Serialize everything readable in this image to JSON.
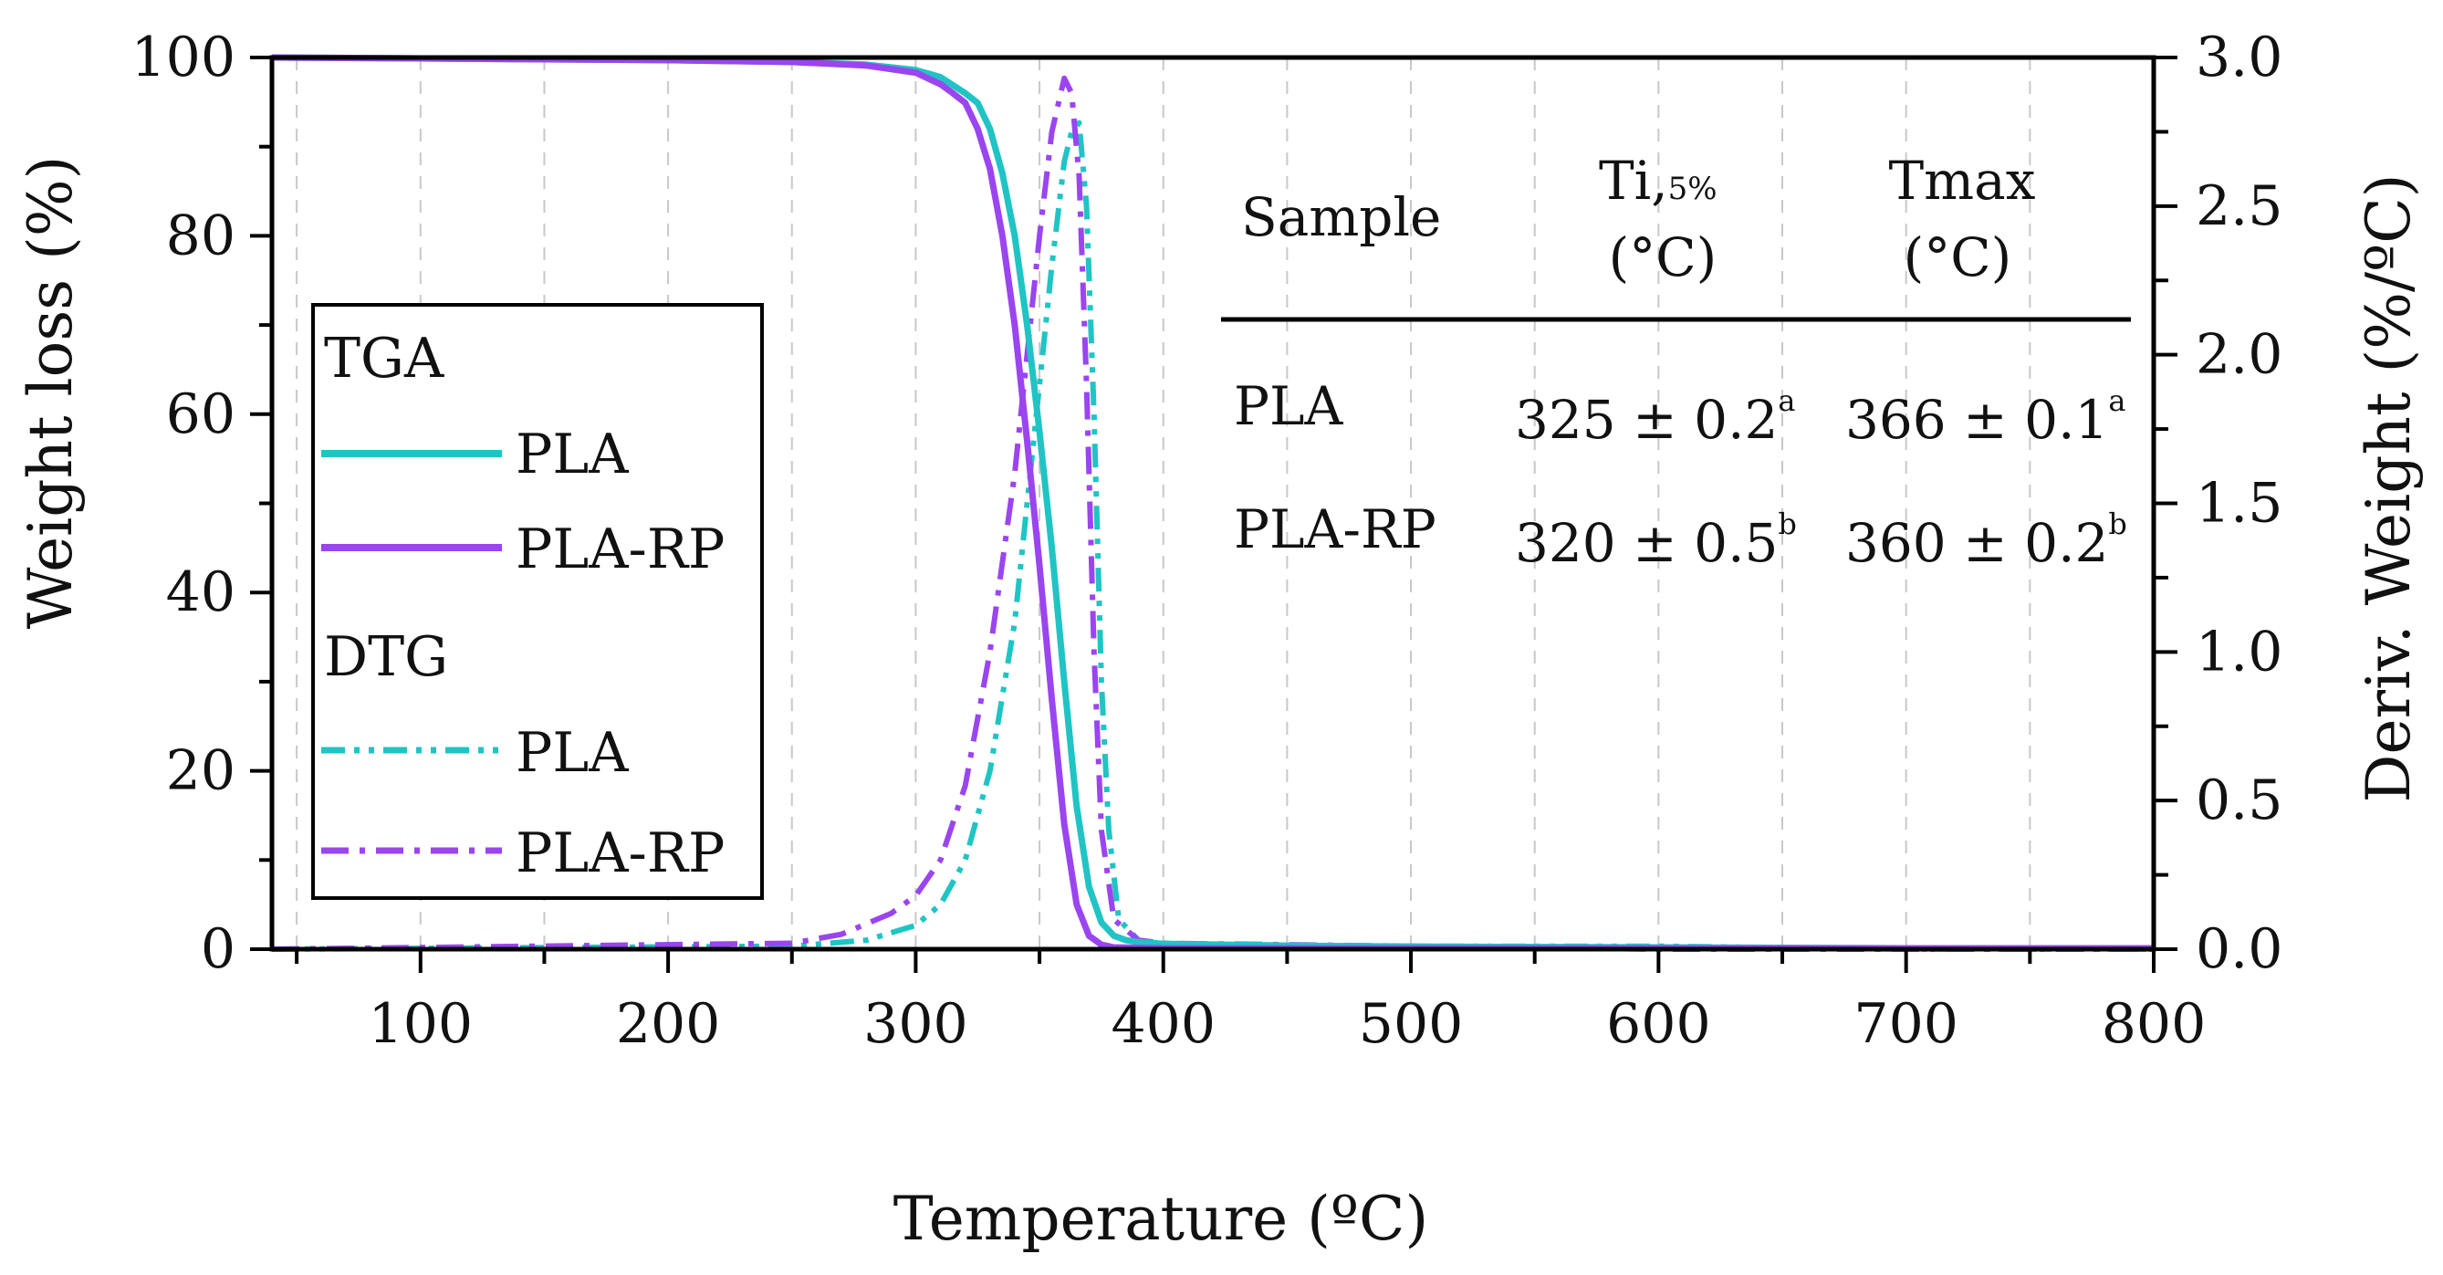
{
  "chart_data": {
    "type": "line",
    "xlabel": "Temperature (ºC)",
    "ylabel": "Weight loss (%)",
    "y2label": "Deriv. Weight (%/ºC)",
    "xlim": [
      40,
      800
    ],
    "ylim": [
      0,
      100
    ],
    "y2lim": [
      0,
      3.0
    ],
    "x_ticks": [
      "100",
      "200",
      "300",
      "400",
      "500",
      "600",
      "700",
      "800"
    ],
    "y_ticks": [
      "0",
      "20",
      "40",
      "60",
      "80",
      "100"
    ],
    "y2_ticks": [
      "0.0",
      "0.5",
      "1.0",
      "1.5",
      "2.0",
      "2.5",
      "3.0"
    ],
    "grid": "vertical-dashed",
    "colors": {
      "PLA": "#20c4c4",
      "PLA-RP": "#9a45f0",
      "axis": "#000000",
      "grid": "#c8c8c8"
    },
    "legend": {
      "position": "left",
      "groups": [
        {
          "title": "TGA",
          "entries": [
            {
              "label": "PLA",
              "series": "tga_pla"
            },
            {
              "label": "PLA-RP",
              "series": "tga_plarp"
            }
          ]
        },
        {
          "title": "DTG",
          "entries": [
            {
              "label": "PLA",
              "series": "dtg_pla"
            },
            {
              "label": "PLA-RP",
              "series": "dtg_plarp"
            }
          ]
        }
      ]
    },
    "series": [
      {
        "id": "tga_pla",
        "name": "TGA PLA",
        "axis": "left",
        "color": "#20c4c4",
        "style": "solid",
        "x": [
          40,
          100,
          200,
          250,
          280,
          300,
          310,
          320,
          325,
          330,
          335,
          340,
          345,
          350,
          355,
          360,
          365,
          370,
          375,
          380,
          385,
          390,
          400,
          450,
          500,
          600,
          700,
          800
        ],
        "y": [
          100,
          99.9,
          99.7,
          99.5,
          99.2,
          98.6,
          97.8,
          96.0,
          94.9,
          92.0,
          87.0,
          80.0,
          70.0,
          58.0,
          45.0,
          30.0,
          16.0,
          7.0,
          3.0,
          1.5,
          1.0,
          0.8,
          0.6,
          0.4,
          0.3,
          0.2,
          0.1,
          0.1
        ]
      },
      {
        "id": "tga_plarp",
        "name": "TGA PLA-RP",
        "axis": "left",
        "color": "#9a45f0",
        "style": "solid",
        "x": [
          40,
          100,
          200,
          250,
          280,
          300,
          310,
          315,
          320,
          325,
          330,
          335,
          340,
          345,
          350,
          355,
          360,
          365,
          370,
          375,
          380,
          400,
          500,
          600,
          700,
          800
        ],
        "y": [
          100,
          99.9,
          99.7,
          99.5,
          99.1,
          98.3,
          97.0,
          96.0,
          94.9,
          92.0,
          87.5,
          80.0,
          70.0,
          57.0,
          43.0,
          28.0,
          14.0,
          5.0,
          1.5,
          0.5,
          0.2,
          0.1,
          0.1,
          0.1,
          0.1,
          0.1
        ]
      },
      {
        "id": "dtg_pla",
        "name": "DTG PLA",
        "axis": "right",
        "color": "#20c4c4",
        "style": "dash-dot-dot",
        "x": [
          40,
          250,
          280,
          300,
          310,
          320,
          330,
          340,
          345,
          350,
          355,
          360,
          363,
          366,
          369,
          372,
          375,
          378,
          382,
          390,
          400,
          450,
          500,
          600,
          700,
          800
        ],
        "y": [
          0,
          0.01,
          0.03,
          0.08,
          0.15,
          0.3,
          0.6,
          1.1,
          1.5,
          1.9,
          2.3,
          2.65,
          2.75,
          2.78,
          2.5,
          1.8,
          0.9,
          0.4,
          0.1,
          0.03,
          0.02,
          0.01,
          0.01,
          0.01,
          0.0,
          0.0
        ]
      },
      {
        "id": "dtg_plarp",
        "name": "DTG PLA-RP",
        "axis": "right",
        "color": "#9a45f0",
        "style": "dash-dot",
        "x": [
          40,
          250,
          270,
          290,
          300,
          310,
          320,
          330,
          340,
          345,
          350,
          355,
          360,
          363,
          366,
          369,
          372,
          375,
          380,
          390,
          400,
          500,
          600,
          700,
          800
        ],
        "y": [
          0,
          0.02,
          0.05,
          0.12,
          0.18,
          0.3,
          0.55,
          1.0,
          1.6,
          2.0,
          2.4,
          2.75,
          2.93,
          2.88,
          2.6,
          1.9,
          1.0,
          0.4,
          0.1,
          0.03,
          0.02,
          0.01,
          0.0,
          0.0,
          0.0
        ]
      }
    ],
    "table": {
      "headers": {
        "sample": "Sample",
        "ti_main": "Ti,",
        "ti_sub": "5%",
        "ti_unit": "(°C)",
        "tmax_main": "Tmax",
        "tmax_unit": "(°C)"
      },
      "rows": [
        {
          "sample": "PLA",
          "ti": "325 ± 0.2",
          "ti_sup": "a",
          "tmax": "366 ± 0.1",
          "tmax_sup": "a"
        },
        {
          "sample": "PLA-RP",
          "ti": "320 ± 0.5",
          "ti_sup": "b",
          "tmax": "360 ± 0.2",
          "tmax_sup": "b"
        }
      ]
    }
  }
}
